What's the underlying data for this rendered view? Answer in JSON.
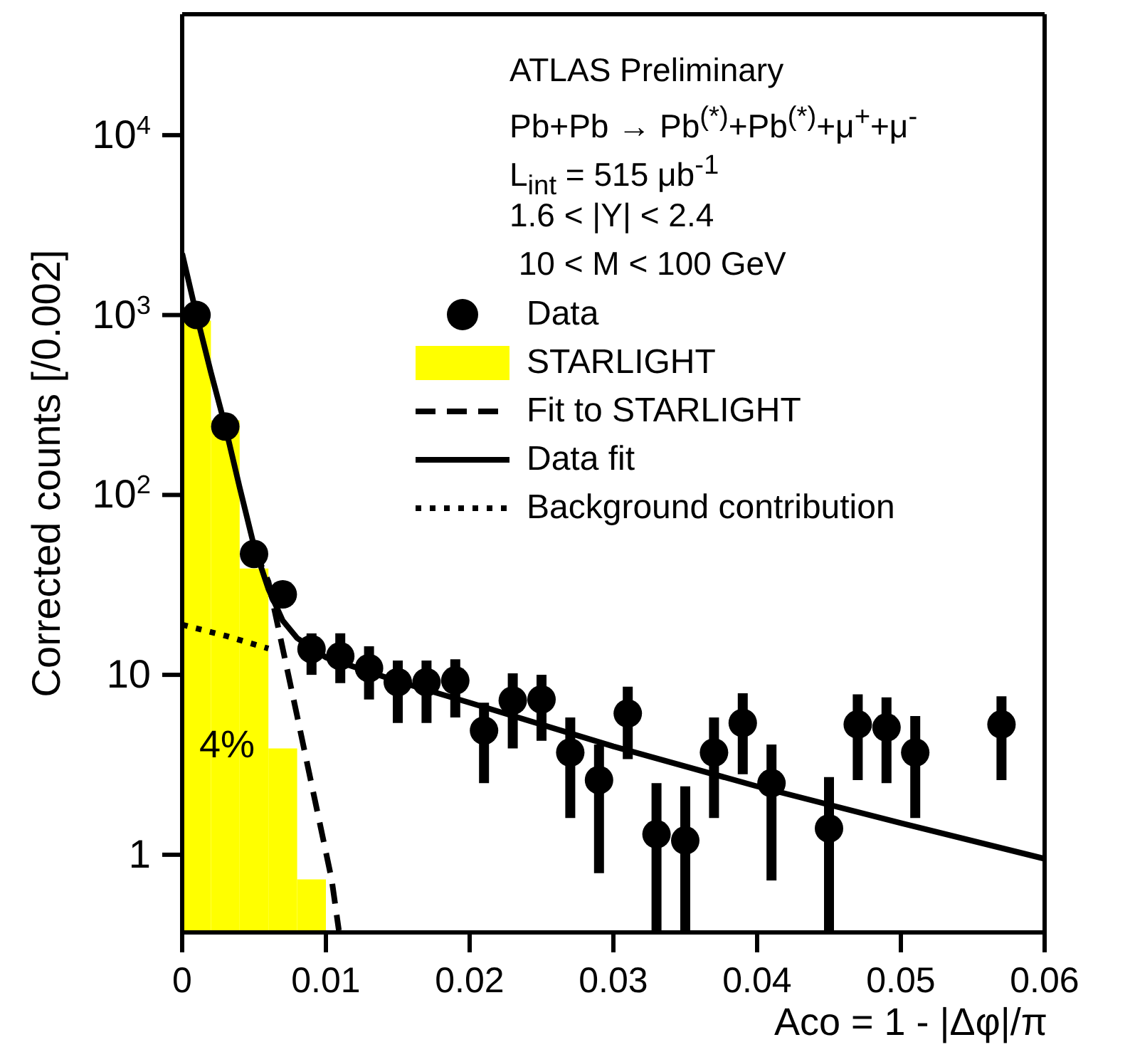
{
  "chart_data": {
    "type": "scatter",
    "xlabel": "Aco = 1 - |Δφ|/π",
    "ylabel": "Corrected counts [/0.002]",
    "xlim": [
      0,
      0.06
    ],
    "xticks": [
      0,
      0.01,
      0.02,
      0.03,
      0.04,
      0.05,
      0.06
    ],
    "ylim": [
      0.37,
      47000
    ],
    "yticks": [
      1,
      10,
      {
        "value": 100,
        "label": "10$^{2}$"
      },
      {
        "value": 1000,
        "label": "10$^{3}$"
      },
      {
        "value": 10000,
        "label": "10$^{4}$"
      }
    ],
    "log": true,
    "legend": "right",
    "annotations": [
      "ATLAS Preliminary",
      "Pb+Pb → Pb$^{(*)}$+Pb$^{(*)}$+μ$^{+}$+μ$^{-}$",
      "L$_{int}$ = 515 μb$^{-1}$",
      "1.6 < |Y| < 2.4",
      " 10 < M < 100 GeV",
      "4%"
    ],
    "series": [
      {
        "name": "Data",
        "type": "scatter",
        "marker": "circle",
        "color": "#000000",
        "x": [
          0.001,
          0.003,
          0.005,
          0.007,
          0.009,
          0.011,
          0.013,
          0.015,
          0.017,
          0.019,
          0.021,
          0.023,
          0.025,
          0.027,
          0.029,
          0.031,
          0.033,
          0.035,
          0.037,
          0.039,
          0.041,
          0.045,
          0.047,
          0.049,
          0.051,
          0.057
        ],
        "values": [
          1000,
          240,
          47,
          28,
          13.9,
          12.7,
          10.9,
          9.1,
          9.1,
          9.3,
          4.9,
          7.2,
          7.3,
          3.7,
          2.6,
          6.1,
          1.3,
          1.2,
          3.7,
          5.4,
          2.5,
          1.4,
          5.3,
          5.1,
          3.7,
          5.3
        ],
        "errors": [
          null,
          null,
          null,
          null,
          [
            10,
            17
          ],
          [
            9,
            17
          ],
          [
            7.3,
            14.4
          ],
          [
            5.4,
            12
          ],
          [
            5.4,
            12
          ],
          [
            5.8,
            12.2
          ],
          [
            2.5,
            7
          ],
          [
            3.9,
            10.2
          ],
          [
            4.3,
            10
          ],
          [
            1.6,
            5.8
          ],
          [
            0.79,
            4.1
          ],
          [
            3.4,
            8.6
          ],
          [
            0.37,
            2.5
          ],
          [
            0.37,
            2.4
          ],
          [
            1.6,
            5.8
          ],
          [
            2.8,
            7.9
          ],
          [
            0.72,
            4.1
          ],
          [
            0.37,
            2.7
          ],
          [
            2.6,
            7.8
          ],
          [
            2.5,
            7.5
          ],
          [
            1.6,
            5.9
          ],
          [
            2.6,
            7.6
          ]
        ]
      },
      {
        "name": "STARLIGHT",
        "type": "histogram",
        "color": "#ffff00",
        "bins": [
          0,
          0.002,
          0.004,
          0.006,
          0.008,
          0.01
        ],
        "values": [
          930,
          260,
          39,
          3.9,
          0.73
        ]
      },
      {
        "name": "Fit to STARLIGHT",
        "type": "line",
        "line_style": "dashed",
        "color": "#000000",
        "x": [
          0.005,
          0.006,
          0.008,
          0.0104,
          0.0109
        ],
        "values": [
          50,
          33,
          5.9,
          0.73,
          0.38
        ]
      },
      {
        "name": "Data fit",
        "type": "line",
        "line_style": "solid",
        "color": "#000000",
        "x": [
          0,
          0.001,
          0.002,
          0.003,
          0.004,
          0.005,
          0.006,
          0.007,
          0.008,
          0.01,
          0.015,
          0.02,
          0.03,
          0.04,
          0.05,
          0.06
        ],
        "values": [
          2200,
          1000,
          480,
          240,
          110,
          52,
          30,
          20,
          16,
          12.5,
          9.2,
          7,
          4,
          2.4,
          1.5,
          0.95
        ]
      },
      {
        "name": "Background contribution",
        "type": "line",
        "line_style": "dotted",
        "color": "#000000",
        "x": [
          0,
          0.003,
          0.006
        ],
        "values": [
          19,
          16.5,
          14
        ]
      }
    ]
  }
}
